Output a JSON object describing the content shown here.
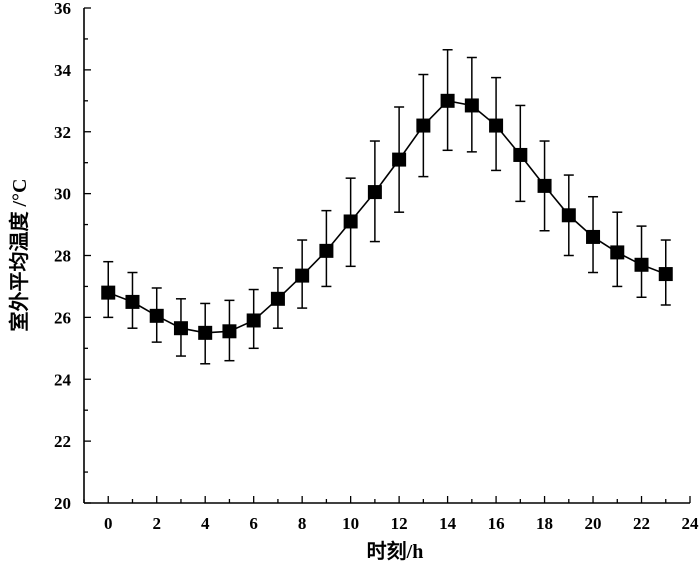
{
  "chart_data": {
    "type": "line",
    "title": "",
    "xlabel": "时刻/h",
    "ylabel": "室外平均温度 /°C",
    "xlim": [
      -1,
      24
    ],
    "ylim": [
      20,
      36
    ],
    "x_ticks": [
      0,
      2,
      4,
      6,
      8,
      10,
      12,
      14,
      16,
      18,
      20,
      22,
      24
    ],
    "y_ticks": [
      20,
      22,
      24,
      26,
      28,
      30,
      32,
      34,
      36
    ],
    "x_tick_labels": [
      "0",
      "2",
      "4",
      "6",
      "8",
      "10",
      "12",
      "14",
      "16",
      "18",
      "20",
      "22",
      "24"
    ],
    "y_tick_labels": [
      "20",
      "22",
      "24",
      "26",
      "28",
      "30",
      "32",
      "34",
      "36"
    ],
    "grid": false,
    "marker": "square",
    "series": [
      {
        "x": [
          0,
          1,
          2,
          3,
          4,
          5,
          6,
          7,
          8,
          9,
          10,
          11,
          12,
          13,
          14,
          15,
          16,
          17,
          18,
          19,
          20,
          21,
          22,
          23
        ],
        "values": [
          26.8,
          26.5,
          26.05,
          25.65,
          25.5,
          25.55,
          25.9,
          26.6,
          27.35,
          28.15,
          29.1,
          30.05,
          31.1,
          32.2,
          33.0,
          32.85,
          32.2,
          31.25,
          30.25,
          29.3,
          28.6,
          28.1,
          27.7,
          27.4
        ],
        "err_upper": [
          27.8,
          27.45,
          26.95,
          26.6,
          26.45,
          26.55,
          26.9,
          27.6,
          28.5,
          29.45,
          30.5,
          31.7,
          32.8,
          33.85,
          34.65,
          34.4,
          33.75,
          32.85,
          31.7,
          30.6,
          29.9,
          29.4,
          28.95,
          28.5
        ],
        "err_lower": [
          26.0,
          25.65,
          25.2,
          24.75,
          24.5,
          24.6,
          25.0,
          25.65,
          26.3,
          27.0,
          27.65,
          28.45,
          29.4,
          30.55,
          31.4,
          31.35,
          30.75,
          29.75,
          28.8,
          28.0,
          27.45,
          27.0,
          26.65,
          26.4
        ]
      }
    ]
  }
}
